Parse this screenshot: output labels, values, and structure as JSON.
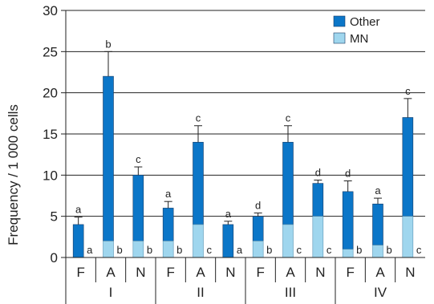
{
  "chart_data": {
    "type": "bar",
    "stacked": true,
    "ylabel": "Frequency / 1 000 cells",
    "ylim": [
      0,
      30
    ],
    "yticks": [
      "0",
      "5",
      "10",
      "15",
      "20",
      "25",
      "30"
    ],
    "grid": true,
    "legend": {
      "position": "top-right",
      "entries": [
        {
          "name": "Other",
          "color": "#0b76c8"
        },
        {
          "name": "MN",
          "color": "#9fd6ee"
        }
      ]
    },
    "groups": [
      {
        "label": "I",
        "bars": [
          {
            "label": "F",
            "mn": 0,
            "total": 4,
            "err": 0.9,
            "letter_total": "a",
            "letter_mn": "a"
          },
          {
            "label": "A",
            "mn": 2,
            "total": 22,
            "err": 3.0,
            "letter_total": "b",
            "letter_mn": "b"
          },
          {
            "label": "N",
            "mn": 2,
            "total": 10,
            "err": 1.0,
            "letter_total": "c",
            "letter_mn": "b"
          }
        ]
      },
      {
        "label": "II",
        "bars": [
          {
            "label": "F",
            "mn": 2,
            "total": 6,
            "err": 0.8,
            "letter_total": "a",
            "letter_mn": "b"
          },
          {
            "label": "A",
            "mn": 4,
            "total": 14,
            "err": 2.0,
            "letter_total": "c",
            "letter_mn": "c"
          },
          {
            "label": "N",
            "mn": 0,
            "total": 4,
            "err": 0.4,
            "letter_total": "a",
            "letter_mn": "a"
          }
        ]
      },
      {
        "label": "III",
        "bars": [
          {
            "label": "F",
            "mn": 2,
            "total": 5,
            "err": 0.4,
            "letter_total": "d",
            "letter_mn": "b"
          },
          {
            "label": "A",
            "mn": 4,
            "total": 14,
            "err": 2.0,
            "letter_total": "c",
            "letter_mn": "c"
          },
          {
            "label": "N",
            "mn": 5,
            "total": 9,
            "err": 0.4,
            "letter_total": "d",
            "letter_mn": "c"
          }
        ]
      },
      {
        "label": "IV",
        "bars": [
          {
            "label": "F",
            "mn": 1,
            "total": 8,
            "err": 1.3,
            "letter_total": "d",
            "letter_mn": "b"
          },
          {
            "label": "A",
            "mn": 1.5,
            "total": 6.5,
            "err": 0.7,
            "letter_total": "a",
            "letter_mn": "b"
          },
          {
            "label": "N",
            "mn": 5,
            "total": 17,
            "err": 2.3,
            "letter_total": "c",
            "letter_mn": "c"
          }
        ]
      }
    ]
  }
}
